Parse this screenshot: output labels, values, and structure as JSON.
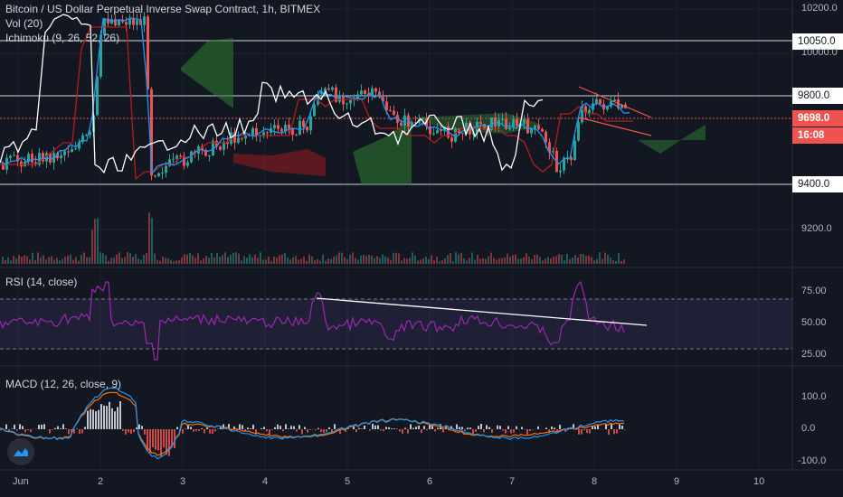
{
  "header": {
    "title": "Bitcoin / US Dollar Perpetual Inverse Swap Contract, 1h, BITMEX",
    "vol_label": "Vol (20)",
    "ichimoku_label": "Ichimoku (9, 26, 52, 26)"
  },
  "rsi": {
    "label": "RSI (14, close)",
    "levels": [
      "75.00",
      "50.00",
      "25.00"
    ]
  },
  "macd": {
    "label": "MACD (12, 26, close, 9)",
    "levels": [
      "100.0",
      "0.0",
      "-100.0"
    ]
  },
  "price_axis": {
    "ticks": [
      "10200.0",
      "10000.0",
      "9200.0"
    ],
    "hlines": [
      "10050.0",
      "9800.0",
      "9400.0"
    ],
    "last_price": "9698.0",
    "countdown": "16:08"
  },
  "time_axis": [
    "Jun",
    "2",
    "3",
    "4",
    "5",
    "6",
    "7",
    "8",
    "9",
    "10"
  ],
  "colors": {
    "background": "#131722",
    "up": "#26a69a",
    "down": "#ef5350",
    "rsi": "#9c27b0",
    "macd_line": "#2196f3",
    "signal_line": "#ff6d00",
    "tenkan": "#2196f3",
    "kijun": "#b71c1c",
    "chikou": "#ffffff",
    "cloud_up": "#2e7d32",
    "cloud_down": "#b71c1c"
  },
  "logo_icon": "tradingview-logo-icon"
}
